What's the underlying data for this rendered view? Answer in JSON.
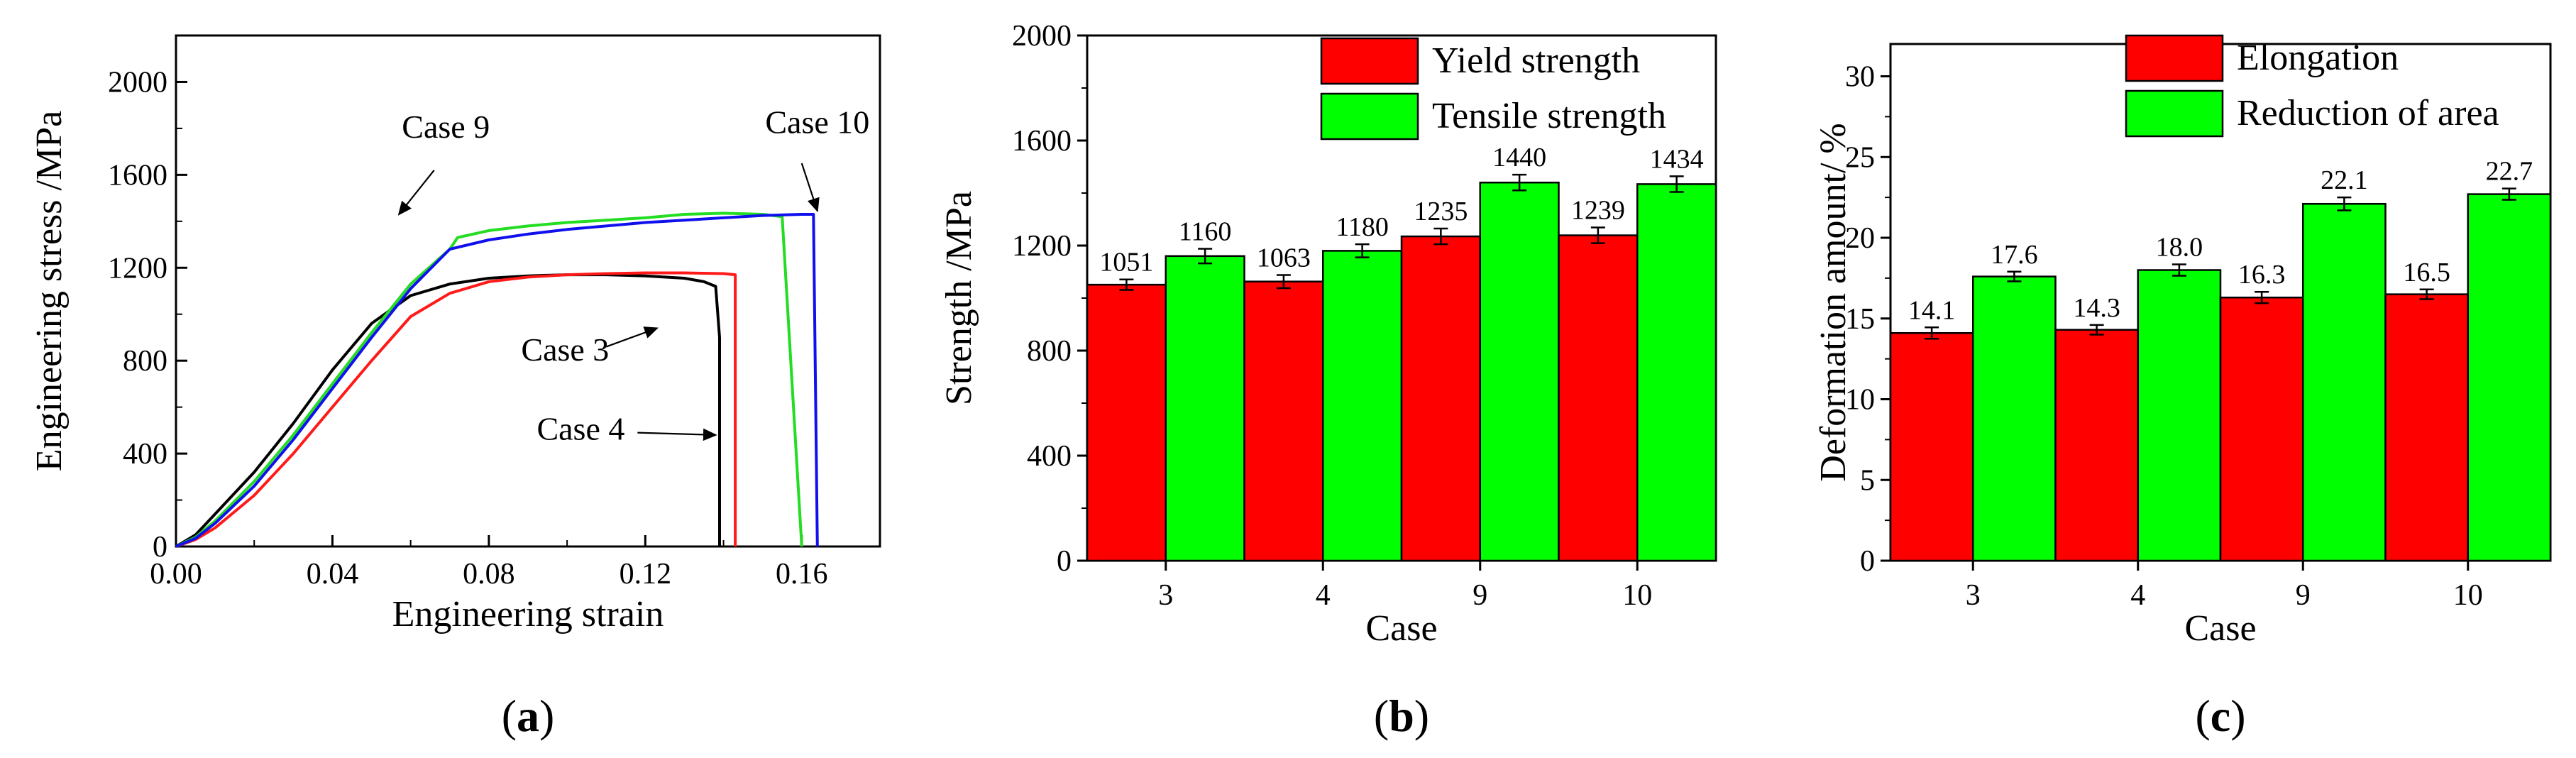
{
  "colors": {
    "case3": "#000000",
    "case4": "#ff1a1a",
    "case9": "#22dd22",
    "case10": "#1010ee",
    "red_bar": "#ff0000",
    "green_bar": "#00ff00"
  },
  "chart_data": [
    {
      "panel": "(a)",
      "panel_open": "(",
      "panel_letter": "a",
      "panel_close": ")",
      "type": "line",
      "xlabel": "Engineering strain",
      "ylabel": "Engineering stress /MPa",
      "xlim": [
        0,
        0.18
      ],
      "ylim": [
        0,
        2200
      ],
      "xticks": [
        0,
        0.04,
        0.08,
        0.12,
        0.16
      ],
      "xtick_labels": [
        "0.00",
        "0.04",
        "0.08",
        "0.12",
        "0.16"
      ],
      "yticks": [
        0,
        400,
        800,
        1200,
        1600,
        2000
      ],
      "ytick_labels": [
        "0",
        "400",
        "800",
        "1200",
        "1600",
        "2000"
      ],
      "annotations": [
        "Case 9",
        "Case 10",
        "Case 3",
        "Case 4"
      ],
      "series": [
        {
          "name": "Case 3",
          "color_key": "case3",
          "x": [
            0,
            0.005,
            0.01,
            0.02,
            0.03,
            0.04,
            0.05,
            0.06,
            0.07,
            0.08,
            0.09,
            0.1,
            0.11,
            0.12,
            0.13,
            0.135,
            0.138,
            0.139,
            0.139
          ],
          "y": [
            0,
            50,
            140,
            320,
            530,
            760,
            960,
            1080,
            1130,
            1155,
            1165,
            1170,
            1170,
            1165,
            1155,
            1140,
            1120,
            900,
            0
          ]
        },
        {
          "name": "Case 4",
          "color_key": "case4",
          "x": [
            0,
            0.005,
            0.01,
            0.02,
            0.03,
            0.04,
            0.05,
            0.06,
            0.07,
            0.08,
            0.09,
            0.1,
            0.11,
            0.12,
            0.13,
            0.14,
            0.143,
            0.143
          ],
          "y": [
            0,
            30,
            80,
            220,
            400,
            600,
            800,
            990,
            1090,
            1140,
            1160,
            1170,
            1175,
            1178,
            1178,
            1175,
            1170,
            0
          ]
        },
        {
          "name": "Case 9",
          "color_key": "case9",
          "x": [
            0,
            0.005,
            0.01,
            0.02,
            0.03,
            0.04,
            0.05,
            0.06,
            0.07,
            0.072,
            0.08,
            0.09,
            0.1,
            0.11,
            0.12,
            0.13,
            0.14,
            0.15,
            0.155,
            0.16
          ],
          "y": [
            0,
            40,
            110,
            280,
            480,
            700,
            920,
            1130,
            1280,
            1330,
            1360,
            1380,
            1395,
            1405,
            1415,
            1430,
            1435,
            1430,
            1420,
            0
          ]
        },
        {
          "name": "Case 10",
          "color_key": "case10",
          "x": [
            0,
            0.005,
            0.01,
            0.02,
            0.03,
            0.04,
            0.05,
            0.06,
            0.07,
            0.08,
            0.09,
            0.1,
            0.11,
            0.12,
            0.13,
            0.14,
            0.15,
            0.16,
            0.163,
            0.164
          ],
          "y": [
            0,
            35,
            100,
            260,
            460,
            680,
            900,
            1110,
            1280,
            1320,
            1345,
            1365,
            1380,
            1395,
            1405,
            1415,
            1425,
            1430,
            1430,
            0
          ]
        }
      ]
    },
    {
      "panel": "(b)",
      "panel_open": "(",
      "panel_letter": "b",
      "panel_close": ")",
      "type": "bar",
      "xlabel": "Case",
      "ylabel": "Strength /MPa",
      "categories": [
        "3",
        "4",
        "9",
        "10"
      ],
      "ylim": [
        0,
        2000
      ],
      "yticks": [
        0,
        400,
        800,
        1200,
        1600,
        2000
      ],
      "legend_position": "top-right",
      "series": [
        {
          "name": "Yield strength",
          "color_key": "red_bar",
          "values": [
            1051,
            1063,
            1235,
            1239
          ],
          "errors": [
            20,
            25,
            30,
            30
          ],
          "value_labels": [
            "1051",
            "1063",
            "1235",
            "1239"
          ]
        },
        {
          "name": "Tensile strength",
          "color_key": "green_bar",
          "values": [
            1160,
            1180,
            1440,
            1434
          ],
          "errors": [
            28,
            25,
            30,
            30
          ],
          "value_labels": [
            "1160",
            "1180",
            "1440",
            "1434"
          ]
        }
      ]
    },
    {
      "panel": "(c)",
      "panel_open": "(",
      "panel_letter": "c",
      "panel_close": ")",
      "type": "bar",
      "xlabel": "Case",
      "ylabel": "Deformation amount/ %",
      "categories": [
        "3",
        "4",
        "9",
        "10"
      ],
      "ylim": [
        0,
        32
      ],
      "yticks": [
        0,
        5,
        10,
        15,
        20,
        25,
        30
      ],
      "legend_position": "top-right",
      "series": [
        {
          "name": "Elongation",
          "color_key": "red_bar",
          "values": [
            14.1,
            14.3,
            16.3,
            16.5
          ],
          "errors": [
            0.35,
            0.3,
            0.35,
            0.3
          ],
          "value_labels": [
            "14.1",
            "14.3",
            "16.3",
            "16.5"
          ]
        },
        {
          "name": "Reduction of area",
          "color_key": "green_bar",
          "values": [
            17.6,
            18.0,
            22.1,
            22.7
          ],
          "errors": [
            0.3,
            0.35,
            0.4,
            0.35
          ],
          "value_labels": [
            "17.6",
            "18.0",
            "22.1",
            "22.7"
          ]
        }
      ]
    }
  ]
}
